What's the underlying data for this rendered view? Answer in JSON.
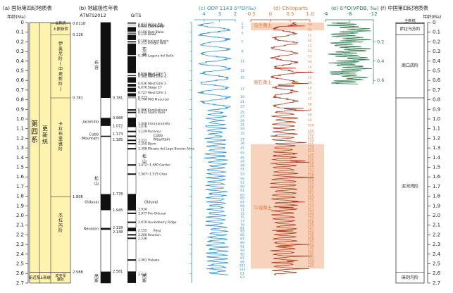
{
  "panels": {
    "a": "(a) 国际第四纪地质表",
    "b": "(b) 地磁极性年表",
    "c": "(c) ODP 1143 δ¹⁸O(‰)",
    "d": "(d) Chiloparts",
    "e": "(e) δ¹⁸O(VPDB, ‰)",
    "f": "(f) 中国第四纪地质表"
  },
  "left_axis": {
    "title": "年龄(Ma)",
    "ticks": [
      "0",
      "0.1",
      "0.2",
      "0.3",
      "0.4",
      "0.5",
      "0.6",
      "0.7",
      "0.8",
      "0.9",
      "1.0",
      "1.1",
      "1.2",
      "1.3",
      "1.4",
      "1.5",
      "1.6",
      "1.7",
      "1.8",
      "1.9",
      "2.0",
      "2.1",
      "2.2",
      "2.3",
      "2.4",
      "2.5",
      "2.6",
      "2.7"
    ]
  },
  "right_axis": {
    "title": "年龄(Ma)",
    "ticks": [
      "0",
      "0.1",
      "0.2",
      "0.3",
      "0.4",
      "0.5",
      "0.6",
      "0.7",
      "0.8",
      "0.9",
      "1.0",
      "1.1",
      "1.2",
      "1.3",
      "1.4",
      "1.5",
      "1.6",
      "1.7",
      "1.8",
      "1.9",
      "2.0",
      "2.1",
      "2.2",
      "2.3",
      "2.4",
      "2.5",
      "2.6",
      "2.7"
    ]
  },
  "panel_a": {
    "system": "第四系",
    "series": "更新统",
    "holocene": "全新统",
    "upper": "上更新阶",
    "middle": "伊奥尼阶(中更新阶)",
    "calabrian": "卡拉布里雅阶",
    "gelasian": "杰拉西阶",
    "bottom_left": "新近系",
    "bottom_mid": "上新统",
    "bottom_right": "皮亚琴察阶",
    "boundary_ages": [
      "0.0118",
      "0.126",
      "0.781",
      "1.806",
      "2.588"
    ]
  },
  "panel_b": {
    "atnts_label": "ATNTS2012",
    "gits_label": "GITS",
    "chron_labels": [
      "布容",
      "松山",
      "高斯"
    ],
    "subchron_labels": [
      "Jaramillo",
      "Cobb Mountain",
      "Olduvai",
      "Reunion"
    ],
    "atnts_ages": [
      "0.781",
      "0.988",
      "1.072",
      "1.173",
      "1.185",
      "1.778",
      "1.945",
      "2.128",
      "2.148",
      "2.581"
    ],
    "gits_events": [
      "0.017 Hilina Pali",
      "0.032 Mono Lake",
      "0.041 Laschamp",
      "0.100 Post-Blake",
      "0.120 Blake",
      "0.188 Iceland Basin",
      "0.212 Pringle Falls",
      "0.343 Laguna del Sello",
      "0.531 West Eifel 5",
      "0.539 Big Lost",
      "0.560 West Eifel 4",
      "0.630 West Eifel 2",
      "0.670 Stage 17",
      "0.727 West Eifel 1",
      "0.773",
      "0.794 M-B Precursor",
      "0.906 Kamikatsura",
      "0.932 Santa Rosa",
      "1.048 Intra-Jaramillo",
      "1.076",
      "1.129 Punaruu",
      "1.221",
      "1.255 Bjorn",
      "1.308 Mesata del Lago Buenos Aires",
      "1.472~1.480 Gardar",
      "1.567~1.575 Gilsa",
      "1.934",
      "1.977 Pre-Olduvai",
      "2.070 Huckleberry Ridge",
      "2.155",
      "2.200 Reunion",
      "2.236",
      "2.461 Halawa",
      "2.610"
    ],
    "gits_side_labels": [
      "Cobb",
      "Mountain",
      "Feni",
      "Olduvai"
    ]
  },
  "panel_c": {
    "axis_ticks": [
      "4",
      "3",
      "2"
    ],
    "x_range": [
      4.6,
      2.0
    ]
  },
  "panel_d": {
    "axis_ticks": [
      "-0.5",
      "0",
      "0.5",
      "1.0"
    ],
    "loess_labels": [
      "马兰黄土",
      "离石黄土",
      "午城黄土"
    ],
    "s_labels": [
      "S0",
      "S1",
      "L1",
      "S2",
      "L2",
      "S3",
      "L3",
      "S4",
      "L4",
      "S5",
      "L5",
      "S6",
      "L6",
      "S7",
      "L7",
      "S8",
      "L8",
      "S9",
      "L9",
      "S10",
      "L10",
      "S11",
      "L11",
      "S12",
      "L12",
      "S13",
      "L13",
      "S14",
      "L14",
      "S15",
      "L15",
      "S16",
      "L16",
      "S17",
      "L17",
      "S18",
      "L18",
      "S19",
      "L19",
      "S20",
      "L20",
      "S21",
      "L21",
      "S22",
      "L22",
      "S23",
      "L23",
      "S24",
      "L24",
      "S25",
      "L25",
      "S26",
      "L26",
      "S27",
      "L27",
      "S28",
      "L28",
      "S29",
      "L29",
      "S30",
      "L30",
      "S31",
      "L31",
      "S32",
      "L32",
      "S33",
      "L33"
    ]
  },
  "panel_e": {
    "axis_ticks": [
      "-4",
      "-8",
      "-12"
    ],
    "inner_ticks": [
      "0.2",
      "0.4",
      "0.6"
    ]
  },
  "panel_f": {
    "holocene": "全新统",
    "stages": [
      "萨拉乌苏阶",
      "周口店阶",
      "泥河湾阶",
      "麻则沟阶"
    ]
  },
  "mis_numbers": [
    "1",
    "3",
    "5",
    "7",
    "9",
    "11",
    "13",
    "15",
    "17",
    "19",
    "21",
    "23",
    "25",
    "27",
    "29",
    "31",
    "33",
    "35",
    "37",
    "39",
    "41",
    "43",
    "45",
    "47",
    "49",
    "51",
    "53",
    "55",
    "57",
    "59",
    "61",
    "63",
    "65",
    "67",
    "69",
    "71",
    "73",
    "75",
    "77",
    "79",
    "81",
    "83",
    "85",
    "87",
    "89",
    "91",
    "93",
    "95",
    "97",
    "99",
    "101",
    "103",
    "G1",
    "G3"
  ],
  "colors": {
    "ODP": "#2f8fd8",
    "chiloparts": "#b03a1f",
    "loess_shade": "#f7d3bd",
    "d18o": "#2b7a4a",
    "yellow": "#fff3b0",
    "cyan_text": "#2a8fd3",
    "orange_text": "#e07a3a",
    "green_text": "#1f7a4a"
  }
}
